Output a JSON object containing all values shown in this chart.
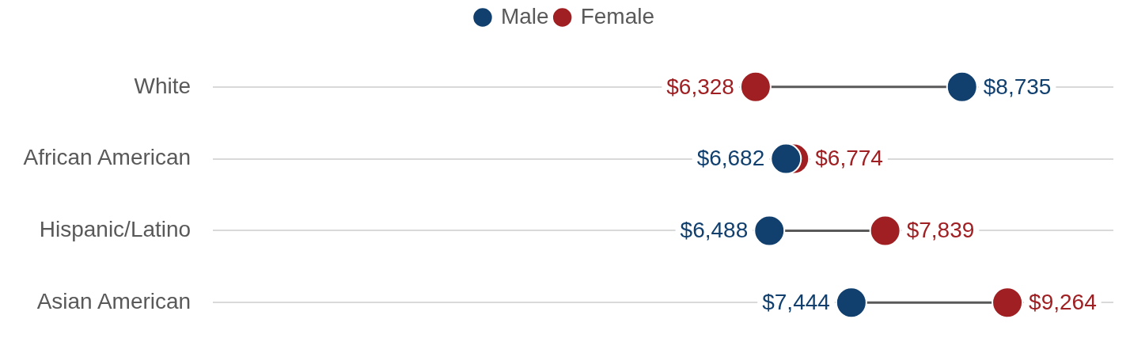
{
  "chart_data": {
    "type": "scatter",
    "orientation": "horizontal",
    "categories": [
      "White",
      "African American",
      "Hispanic/Latino",
      "Asian American"
    ],
    "series": [
      {
        "name": "Male",
        "color": "#11406f",
        "values": [
          8735,
          6682,
          6488,
          7444
        ],
        "value_labels": [
          "$8,735",
          "$6,682",
          "$6,488",
          "$7,444"
        ]
      },
      {
        "name": "Female",
        "color": "#9f1f22",
        "values": [
          6328,
          6774,
          7839,
          9264
        ],
        "value_labels": [
          "$6,328",
          "$6,774",
          "$7,839",
          "$9,264"
        ]
      }
    ],
    "xlim": [
      0,
      10500
    ],
    "tick_labels": "y",
    "grid": "y",
    "legend": "top",
    "marker": "circle"
  }
}
